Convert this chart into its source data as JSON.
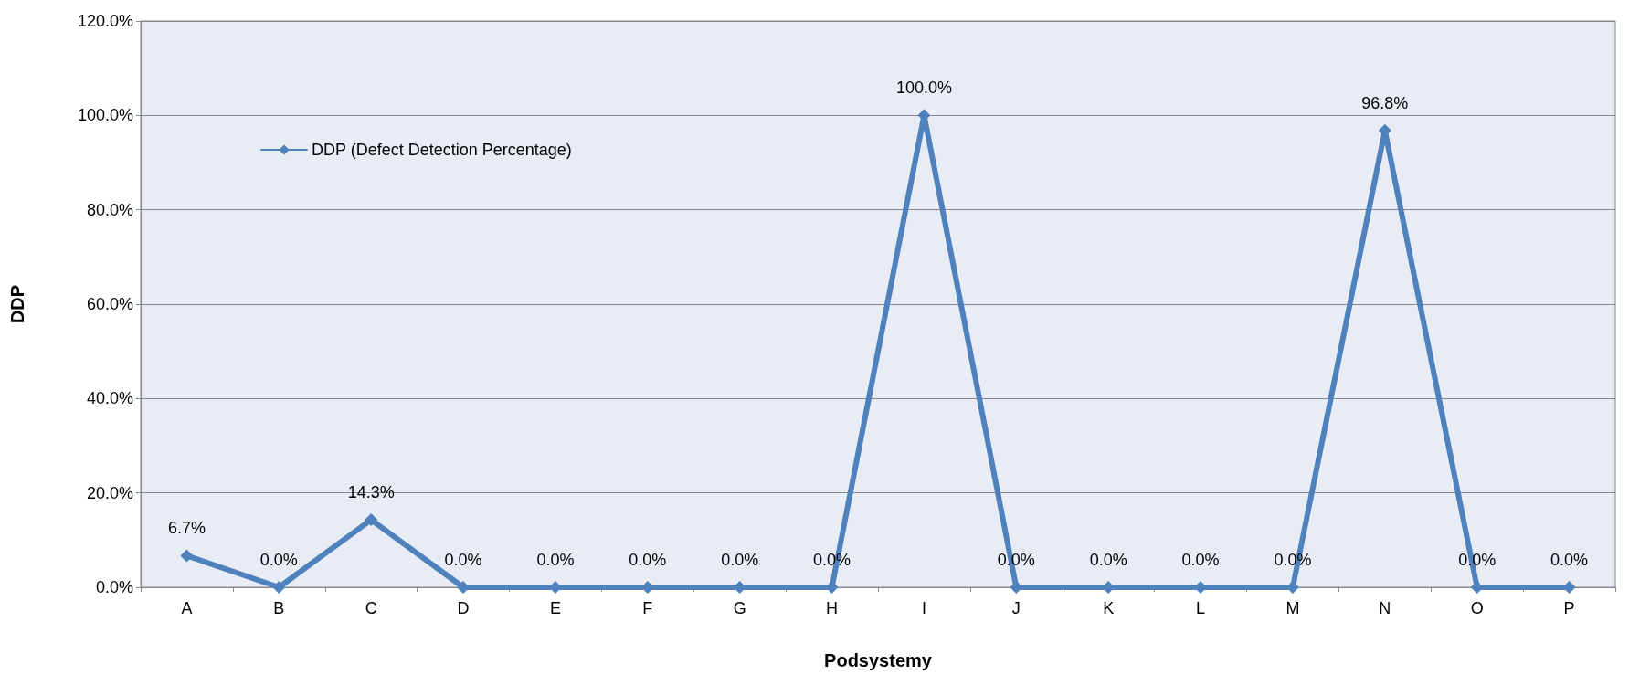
{
  "chart_data": {
    "type": "line",
    "xlabel": "Podsystemy",
    "ylabel": "DDP",
    "categories": [
      "A",
      "B",
      "C",
      "D",
      "E",
      "F",
      "G",
      "H",
      "I",
      "J",
      "K",
      "L",
      "M",
      "N",
      "O",
      "P"
    ],
    "series": [
      {
        "name": "DDP (Defect Detection Percentage)",
        "color": "#4f81bd",
        "values": [
          6.7,
          0,
          14.3,
          0,
          0,
          0,
          0,
          0,
          100,
          0,
          0,
          0,
          0,
          96.8,
          0,
          0
        ],
        "value_labels": [
          "6.7%",
          "0.0%",
          "14.3%",
          "0.0%",
          "0.0%",
          "0.0%",
          "0.0%",
          "0.0%",
          "100.0%",
          "0.0%",
          "0.0%",
          "0.0%",
          "0.0%",
          "96.8%",
          "0.0%",
          "0.0%"
        ]
      }
    ],
    "ylim": [
      0,
      120
    ],
    "yticks": [
      {
        "value": 0,
        "label": "0.0%"
      },
      {
        "value": 20,
        "label": "20.0%"
      },
      {
        "value": 40,
        "label": "40.0%"
      },
      {
        "value": 60,
        "label": "60.0%"
      },
      {
        "value": 80,
        "label": "80.0%"
      },
      {
        "value": 100,
        "label": "100.0%"
      },
      {
        "value": 120,
        "label": "120.0%"
      }
    ],
    "grid": "y",
    "legend": "top left",
    "marker": "diamond",
    "line_style": "solid"
  }
}
